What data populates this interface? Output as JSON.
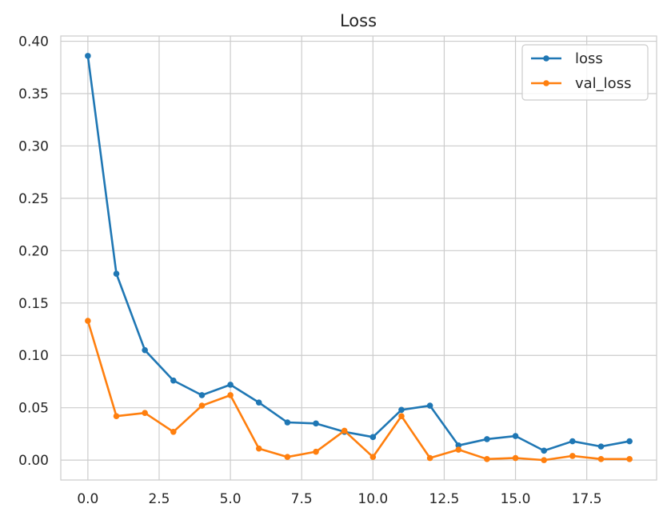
{
  "chart_data": {
    "type": "line",
    "title": "Loss",
    "xlabel": "",
    "ylabel": "",
    "xlim": [
      -0.95,
      19.95
    ],
    "ylim": [
      -0.019,
      0.405
    ],
    "x_ticks": [
      0.0,
      2.5,
      5.0,
      7.5,
      10.0,
      12.5,
      15.0,
      17.5
    ],
    "x_tick_labels": [
      "0.0",
      "2.5",
      "5.0",
      "7.5",
      "10.0",
      "12.5",
      "15.0",
      "17.5"
    ],
    "y_ticks": [
      0.0,
      0.05,
      0.1,
      0.15,
      0.2,
      0.25,
      0.3,
      0.35,
      0.4
    ],
    "y_tick_labels": [
      "0.00",
      "0.05",
      "0.10",
      "0.15",
      "0.20",
      "0.25",
      "0.30",
      "0.35",
      "0.40"
    ],
    "grid": true,
    "legend_position": "top-right",
    "x": [
      0,
      1,
      2,
      3,
      4,
      5,
      6,
      7,
      8,
      9,
      10,
      11,
      12,
      13,
      14,
      15,
      16,
      17,
      18,
      19
    ],
    "series": [
      {
        "name": "loss",
        "color": "#1f77b4",
        "values": [
          0.386,
          0.178,
          0.105,
          0.076,
          0.062,
          0.072,
          0.055,
          0.036,
          0.035,
          0.027,
          0.022,
          0.048,
          0.052,
          0.014,
          0.02,
          0.023,
          0.009,
          0.018,
          0.013,
          0.018
        ]
      },
      {
        "name": "val_loss",
        "color": "#ff7f0e",
        "values": [
          0.133,
          0.042,
          0.045,
          0.027,
          0.052,
          0.062,
          0.011,
          0.003,
          0.008,
          0.028,
          0.003,
          0.042,
          0.002,
          0.01,
          0.001,
          0.002,
          0.0,
          0.004,
          0.001,
          0.001
        ]
      }
    ]
  }
}
